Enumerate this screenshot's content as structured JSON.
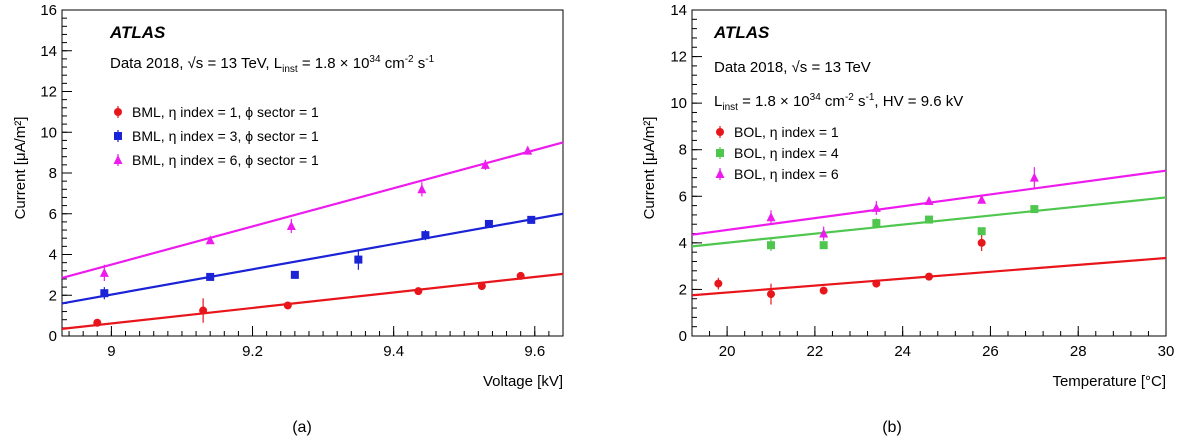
{
  "figure": {
    "panels": [
      "a",
      "b"
    ],
    "captions": [
      "(a)",
      "(b)"
    ]
  },
  "chart_data": [
    {
      "type": "scatter",
      "panel": "a",
      "atlas_label": "ATLAS",
      "info_line1": "Data 2018, √s = 13 TeV, L",
      "info_line1_sub": "inst",
      "info_line1_rest": " = 1.8 × 10",
      "info_line1_sup": "34",
      "info_line1_tail": " cm",
      "info_line1_sup2": "-2",
      "info_line1_tail2": " s",
      "info_line1_sup3": "-1",
      "xlabel": "Voltage [kV]",
      "ylabel": "Current [μA/m²]",
      "xlim": [
        8.93,
        9.64
      ],
      "ylim": [
        0,
        16
      ],
      "xticks": [
        9.0,
        9.2,
        9.4,
        9.6
      ],
      "xtick_labels": [
        "9",
        "9.2",
        "9.4",
        "9.6"
      ],
      "yticks": [
        0,
        2,
        4,
        6,
        8,
        10,
        12,
        14,
        16
      ],
      "ytick_labels": [
        "0",
        "2",
        "4",
        "6",
        "8",
        "10",
        "12",
        "14",
        "16"
      ],
      "legend_position": "upper-left",
      "series": [
        {
          "name": "BML, η index = 1, ϕ sector = 1",
          "color": "#e8151b",
          "marker": "circle",
          "points": [
            [
              8.98,
              0.65,
              0.05
            ],
            [
              9.13,
              1.25,
              0.6
            ],
            [
              9.25,
              1.5,
              0.1
            ],
            [
              9.435,
              2.2,
              0.1
            ],
            [
              9.525,
              2.45,
              0.15
            ],
            [
              9.58,
              2.95,
              0.1
            ]
          ],
          "fit": [
            [
              8.93,
              0.35
            ],
            [
              9.64,
              3.05
            ]
          ]
        },
        {
          "name": "BML, η index = 3, ϕ sector = 1",
          "color": "#1a23d6",
          "marker": "square",
          "points": [
            [
              8.99,
              2.1,
              0.3
            ],
            [
              9.14,
              2.9,
              0.1
            ],
            [
              9.26,
              3.0,
              0.1
            ],
            [
              9.35,
              3.75,
              0.5
            ],
            [
              9.445,
              4.95,
              0.25
            ],
            [
              9.535,
              5.5,
              0.15
            ],
            [
              9.595,
              5.7,
              0.1
            ]
          ],
          "fit": [
            [
              8.93,
              1.6
            ],
            [
              9.64,
              6.0
            ]
          ]
        },
        {
          "name": "BML, η index = 6, ϕ sector = 1",
          "color": "#ee1bee",
          "marker": "triangle",
          "points": [
            [
              8.99,
              3.1,
              0.4
            ],
            [
              9.14,
              4.7,
              0.1
            ],
            [
              9.255,
              5.4,
              0.35
            ],
            [
              9.44,
              7.2,
              0.35
            ],
            [
              9.53,
              8.4,
              0.25
            ],
            [
              9.59,
              9.1,
              0.2
            ]
          ],
          "fit": [
            [
              8.93,
              2.85
            ],
            [
              9.64,
              9.5
            ]
          ]
        }
      ]
    },
    {
      "type": "scatter",
      "panel": "b",
      "atlas_label": "ATLAS",
      "info_line1": "Data 2018, √s = 13 TeV",
      "info_line2": "L",
      "info_line2_sub": "inst",
      "info_line2_rest": " = 1.8 × 10",
      "info_line2_sup": "34",
      "info_line2_tail": " cm",
      "info_line2_sup2": "-2",
      "info_line2_tail2": " s",
      "info_line2_sup3": "-1",
      "info_line2_end": ", HV = 9.6 kV",
      "xlabel": "Temperature [°C]",
      "ylabel": "Current [μA/m²]",
      "xlim": [
        19.2,
        30
      ],
      "ylim": [
        0,
        14
      ],
      "xticks": [
        20,
        22,
        24,
        26,
        28,
        30
      ],
      "xtick_labels": [
        "20",
        "22",
        "24",
        "26",
        "28",
        "30"
      ],
      "yticks": [
        0,
        2,
        4,
        6,
        8,
        10,
        12,
        14
      ],
      "ytick_labels": [
        "0",
        "2",
        "4",
        "6",
        "8",
        "10",
        "12",
        "14"
      ],
      "legend_position": "upper-left",
      "series": [
        {
          "name": "BOL, η index = 1",
          "color": "#e8151b",
          "marker": "circle",
          "points": [
            [
              19.8,
              2.25,
              0.25
            ],
            [
              21.0,
              1.8,
              0.45
            ],
            [
              22.2,
              1.95,
              0.15
            ],
            [
              23.4,
              2.25,
              0.1
            ],
            [
              24.6,
              2.55,
              0.1
            ],
            [
              25.8,
              4.0,
              0.35
            ]
          ],
          "fit": [
            [
              19.2,
              1.75
            ],
            [
              30,
              3.35
            ]
          ]
        },
        {
          "name": "BOL, η index = 4",
          "color": "#4fc74f",
          "marker": "square",
          "points": [
            [
              21.0,
              3.9,
              0.25
            ],
            [
              22.2,
              3.9,
              0.1
            ],
            [
              23.4,
              4.85,
              0.2
            ],
            [
              24.6,
              5.0,
              0.1
            ],
            [
              25.8,
              4.5,
              0.1
            ],
            [
              27.0,
              5.45,
              0.15
            ]
          ],
          "fit": [
            [
              19.2,
              3.85
            ],
            [
              30,
              5.95
            ]
          ]
        },
        {
          "name": "BOL, η index = 6",
          "color": "#ee1bee",
          "marker": "triangle",
          "points": [
            [
              21.0,
              5.1,
              0.3
            ],
            [
              22.2,
              4.4,
              0.3
            ],
            [
              23.4,
              5.5,
              0.3
            ],
            [
              24.6,
              5.8,
              0.1
            ],
            [
              25.8,
              5.85,
              0.15
            ],
            [
              27.0,
              6.8,
              0.45
            ]
          ],
          "fit": [
            [
              19.2,
              4.35
            ],
            [
              30,
              7.1
            ]
          ]
        }
      ]
    }
  ]
}
